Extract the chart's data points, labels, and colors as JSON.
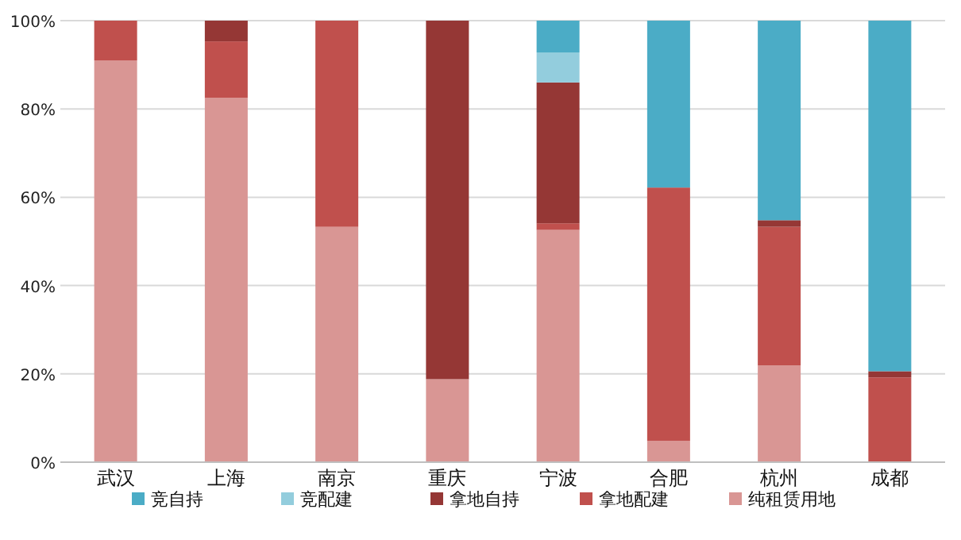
{
  "chart_data": {
    "type": "bar",
    "stacked": true,
    "categories": [
      "武汉",
      "上海",
      "南京",
      "重庆",
      "宁波",
      "合肥",
      "杭州",
      "成都"
    ],
    "series": [
      {
        "name": "纯租赁用地",
        "color": "#d99694",
        "values": [
          91.0,
          82.5,
          53.3,
          18.8,
          52.6,
          4.8,
          21.9,
          0
        ]
      },
      {
        "name": "拿地配建",
        "color": "#c0504d",
        "values": [
          9.0,
          12.8,
          46.7,
          0,
          1.5,
          57.4,
          31.4,
          19.2
        ]
      },
      {
        "name": "拿地自持",
        "color": "#953735",
        "values": [
          0,
          4.7,
          0,
          81.2,
          31.9,
          0,
          1.5,
          1.4
        ]
      },
      {
        "name": "竞配建",
        "color": "#93cddd",
        "values": [
          0,
          0,
          0,
          0,
          6.8,
          0,
          0,
          0
        ]
      },
      {
        "name": "竞自持",
        "color": "#4bacc6",
        "values": [
          0,
          0,
          0,
          0,
          7.2,
          37.8,
          45.2,
          79.4
        ]
      }
    ],
    "ylim": [
      0,
      100
    ],
    "yticks": [
      {
        "value": 0,
        "label": "0%"
      },
      {
        "value": 20,
        "label": "20%"
      },
      {
        "value": 40,
        "label": "40%"
      },
      {
        "value": 60,
        "label": "60%"
      },
      {
        "value": 80,
        "label": "80%"
      },
      {
        "value": 100,
        "label": "100%"
      }
    ],
    "grid": "y",
    "legend": "bottom"
  }
}
